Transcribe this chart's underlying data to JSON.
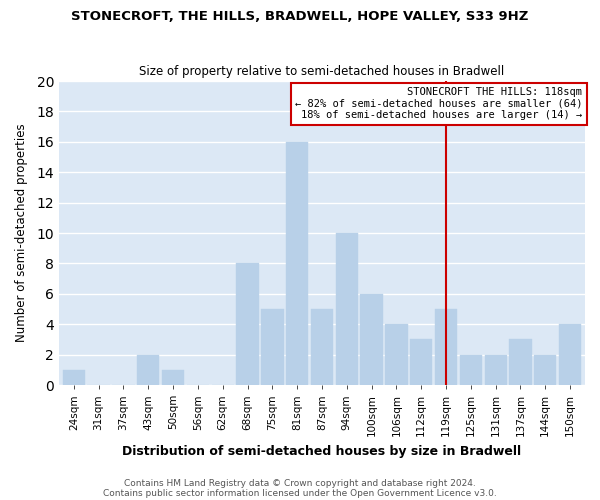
{
  "title": "STONECROFT, THE HILLS, BRADWELL, HOPE VALLEY, S33 9HZ",
  "subtitle": "Size of property relative to semi-detached houses in Bradwell",
  "xlabel": "Distribution of semi-detached houses by size in Bradwell",
  "ylabel": "Number of semi-detached properties",
  "bar_labels": [
    "24sqm",
    "31sqm",
    "37sqm",
    "43sqm",
    "50sqm",
    "56sqm",
    "62sqm",
    "68sqm",
    "75sqm",
    "81sqm",
    "87sqm",
    "94sqm",
    "100sqm",
    "106sqm",
    "112sqm",
    "119sqm",
    "125sqm",
    "131sqm",
    "137sqm",
    "144sqm",
    "150sqm"
  ],
  "bar_values": [
    1,
    0,
    0,
    2,
    1,
    0,
    0,
    8,
    5,
    16,
    5,
    10,
    6,
    4,
    3,
    5,
    2,
    2,
    3,
    2,
    4
  ],
  "bar_color": "#b8d0e8",
  "vline_x_index": 15,
  "vline_color": "#cc0000",
  "annotation_title": "STONECROFT THE HILLS: 118sqm",
  "annotation_line1": "← 82% of semi-detached houses are smaller (64)",
  "annotation_line2": "18% of semi-detached houses are larger (14) →",
  "annotation_box_color": "#ffffff",
  "annotation_box_edge": "#cc0000",
  "ylim": [
    0,
    20
  ],
  "yticks": [
    0,
    2,
    4,
    6,
    8,
    10,
    12,
    14,
    16,
    18,
    20
  ],
  "footer1": "Contains HM Land Registry data © Crown copyright and database right 2024.",
  "footer2": "Contains public sector information licensed under the Open Government Licence v3.0.",
  "fig_background_color": "#ffffff",
  "plot_background_color": "#dce8f5",
  "grid_color": "#ffffff"
}
